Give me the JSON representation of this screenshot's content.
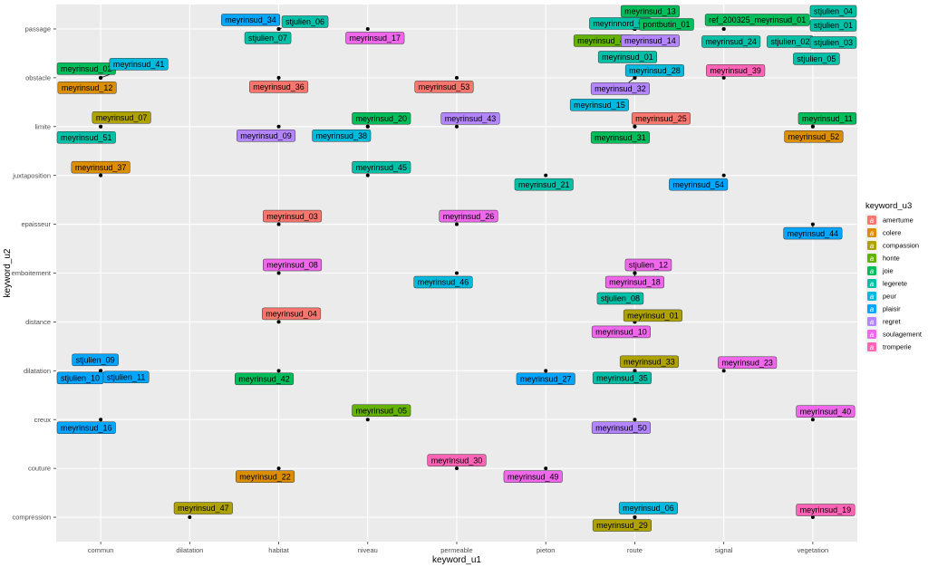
{
  "chart_data": {
    "type": "scatter",
    "xlabel": "keyword_u1",
    "ylabel": "keyword_u2",
    "x_categories": [
      "commun",
      "dilatation",
      "habitat",
      "niveau",
      "permeable",
      "pieton",
      "route",
      "signal",
      "vegetation"
    ],
    "y_categories": [
      "compression",
      "couture",
      "creux",
      "dilatation",
      "distance",
      "emboitement",
      "epaisseur",
      "juxtaposition",
      "limite",
      "obstacle",
      "passage"
    ],
    "legend": {
      "title": "keyword_u3",
      "key_glyph": "a",
      "position": "right",
      "entries": [
        {
          "name": "amertume",
          "color": "#F8766D"
        },
        {
          "name": "colere",
          "color": "#DB8E00"
        },
        {
          "name": "compassion",
          "color": "#AEA200"
        },
        {
          "name": "honte",
          "color": "#64B200"
        },
        {
          "name": "joie",
          "color": "#00BD5C"
        },
        {
          "name": "legerete",
          "color": "#00C1A7"
        },
        {
          "name": "peur",
          "color": "#00BADE"
        },
        {
          "name": "plaisir",
          "color": "#00A6FF"
        },
        {
          "name": "regret",
          "color": "#B385FF"
        },
        {
          "name": "soulagement",
          "color": "#EF67EB"
        },
        {
          "name": "tromperie",
          "color": "#FF63B6"
        }
      ]
    },
    "grid": true,
    "points": [
      {
        "label": "meyrinsud_34",
        "x": "habitat",
        "y": "passage",
        "group": "plaisir"
      },
      {
        "label": "stjulien_06",
        "x": "habitat",
        "y": "passage",
        "group": "legerete"
      },
      {
        "label": "stjulien_07",
        "x": "habitat",
        "y": "passage",
        "group": "legerete"
      },
      {
        "label": "meyrinsud_17",
        "x": "niveau",
        "y": "passage",
        "group": "soulagement"
      },
      {
        "label": "meyrinsud_13",
        "x": "route",
        "y": "passage",
        "group": "joie"
      },
      {
        "label": "meyrinnord_01",
        "x": "route",
        "y": "passage",
        "group": "legerete"
      },
      {
        "label": "pontbutin_01",
        "x": "route",
        "y": "passage",
        "group": "joie"
      },
      {
        "label": "meyrinsud_48",
        "x": "route",
        "y": "passage",
        "group": "honte"
      },
      {
        "label": "meyrinsud_14",
        "x": "route",
        "y": "passage",
        "group": "regret"
      },
      {
        "label": "meyrinsud_01",
        "x": "route",
        "y": "passage",
        "group": "legerete"
      },
      {
        "label": "ref_200325_meyrinsud_01",
        "x": "signal",
        "y": "passage",
        "group": "joie"
      },
      {
        "label": "meyrinsud_24",
        "x": "signal",
        "y": "passage",
        "group": "legerete"
      },
      {
        "label": "stjulien_04",
        "x": "vegetation",
        "y": "passage",
        "group": "legerete"
      },
      {
        "label": "stjulien_01",
        "x": "vegetation",
        "y": "passage",
        "group": "legerete"
      },
      {
        "label": "stjulien_02",
        "x": "vegetation",
        "y": "passage",
        "group": "legerete"
      },
      {
        "label": "stjulien_03",
        "x": "vegetation",
        "y": "passage",
        "group": "legerete"
      },
      {
        "label": "stjulien_05",
        "x": "vegetation",
        "y": "passage",
        "group": "legerete"
      },
      {
        "label": "meyrinsud_02",
        "x": "commun",
        "y": "obstacle",
        "group": "joie"
      },
      {
        "label": "meyrinsud_41",
        "x": "commun",
        "y": "obstacle",
        "group": "peur"
      },
      {
        "label": "meyrinsud_12",
        "x": "commun",
        "y": "obstacle",
        "group": "colere"
      },
      {
        "label": "meyrinsud_36",
        "x": "habitat",
        "y": "obstacle",
        "group": "amertume"
      },
      {
        "label": "meyrinsud_53",
        "x": "permeable",
        "y": "obstacle",
        "group": "amertume"
      },
      {
        "label": "meyrinsud_28",
        "x": "route",
        "y": "obstacle",
        "group": "peur"
      },
      {
        "label": "meyrinsud_32",
        "x": "route",
        "y": "obstacle",
        "group": "regret"
      },
      {
        "label": "meyrinsud_15",
        "x": "route",
        "y": "obstacle",
        "group": "peur"
      },
      {
        "label": "meyrinsud_39",
        "x": "signal",
        "y": "obstacle",
        "group": "tromperie"
      },
      {
        "label": "meyrinsud_07",
        "x": "commun",
        "y": "limite",
        "group": "compassion"
      },
      {
        "label": "meyrinsud_51",
        "x": "commun",
        "y": "limite",
        "group": "legerete"
      },
      {
        "label": "meyrinsud_09",
        "x": "habitat",
        "y": "limite",
        "group": "regret"
      },
      {
        "label": "meyrinsud_20",
        "x": "niveau",
        "y": "limite",
        "group": "joie"
      },
      {
        "label": "meyrinsud_38",
        "x": "niveau",
        "y": "limite",
        "group": "peur"
      },
      {
        "label": "meyrinsud_43",
        "x": "permeable",
        "y": "limite",
        "group": "regret"
      },
      {
        "label": "meyrinsud_25",
        "x": "route",
        "y": "limite",
        "group": "amertume"
      },
      {
        "label": "meyrinsud_31",
        "x": "route",
        "y": "limite",
        "group": "joie"
      },
      {
        "label": "meyrinsud_11",
        "x": "vegetation",
        "y": "limite",
        "group": "joie"
      },
      {
        "label": "meyrinsud_52",
        "x": "vegetation",
        "y": "limite",
        "group": "colere"
      },
      {
        "label": "meyrinsud_37",
        "x": "commun",
        "y": "juxtaposition",
        "group": "colere"
      },
      {
        "label": "meyrinsud_45",
        "x": "niveau",
        "y": "juxtaposition",
        "group": "legerete"
      },
      {
        "label": "meyrinsud_21",
        "x": "pieton",
        "y": "juxtaposition",
        "group": "legerete"
      },
      {
        "label": "meyrinsud_54",
        "x": "signal",
        "y": "juxtaposition",
        "group": "plaisir"
      },
      {
        "label": "meyrinsud_03",
        "x": "habitat",
        "y": "epaisseur",
        "group": "amertume"
      },
      {
        "label": "meyrinsud_26",
        "x": "permeable",
        "y": "epaisseur",
        "group": "soulagement"
      },
      {
        "label": "meyrinsud_44",
        "x": "vegetation",
        "y": "epaisseur",
        "group": "plaisir"
      },
      {
        "label": "meyrinsud_08",
        "x": "habitat",
        "y": "emboitement",
        "group": "soulagement"
      },
      {
        "label": "meyrinsud_46",
        "x": "permeable",
        "y": "emboitement",
        "group": "peur"
      },
      {
        "label": "stjulien_12",
        "x": "route",
        "y": "emboitement",
        "group": "soulagement"
      },
      {
        "label": "meyrinsud_18",
        "x": "route",
        "y": "emboitement",
        "group": "soulagement"
      },
      {
        "label": "stjulien_08",
        "x": "route",
        "y": "emboitement",
        "group": "legerete"
      },
      {
        "label": "meyrinsud_04",
        "x": "habitat",
        "y": "distance",
        "group": "amertume"
      },
      {
        "label": "meyrinsud_01",
        "x": "route",
        "y": "distance",
        "group": "compassion"
      },
      {
        "label": "meyrinsud_10",
        "x": "route",
        "y": "distance",
        "group": "soulagement"
      },
      {
        "label": "stjulien_09",
        "x": "commun",
        "y": "dilatation",
        "group": "plaisir"
      },
      {
        "label": "stjulien_10",
        "x": "commun",
        "y": "dilatation",
        "group": "plaisir"
      },
      {
        "label": "stjulien_11",
        "x": "commun",
        "y": "dilatation",
        "group": "plaisir"
      },
      {
        "label": "meyrinsud_42",
        "x": "habitat",
        "y": "dilatation",
        "group": "joie"
      },
      {
        "label": "meyrinsud_27",
        "x": "pieton",
        "y": "dilatation",
        "group": "plaisir"
      },
      {
        "label": "meyrinsud_33",
        "x": "route",
        "y": "dilatation",
        "group": "compassion"
      },
      {
        "label": "meyrinsud_35",
        "x": "route",
        "y": "dilatation",
        "group": "legerete"
      },
      {
        "label": "meyrinsud_23",
        "x": "signal",
        "y": "dilatation",
        "group": "soulagement"
      },
      {
        "label": "meyrinsud_16",
        "x": "commun",
        "y": "creux",
        "group": "plaisir"
      },
      {
        "label": "meyrinsud_05",
        "x": "niveau",
        "y": "creux",
        "group": "honte"
      },
      {
        "label": "meyrinsud_50",
        "x": "route",
        "y": "creux",
        "group": "regret"
      },
      {
        "label": "meyrinsud_40",
        "x": "vegetation",
        "y": "creux",
        "group": "soulagement"
      },
      {
        "label": "meyrinsud_22",
        "x": "habitat",
        "y": "couture",
        "group": "colere"
      },
      {
        "label": "meyrinsud_30",
        "x": "permeable",
        "y": "couture",
        "group": "tromperie"
      },
      {
        "label": "meyrinsud_49",
        "x": "pieton",
        "y": "couture",
        "group": "soulagement"
      },
      {
        "label": "meyrinsud_47",
        "x": "dilatation",
        "y": "compression",
        "group": "compassion"
      },
      {
        "label": "meyrinsud_06",
        "x": "route",
        "y": "compression",
        "group": "peur"
      },
      {
        "label": "meyrinsud_29",
        "x": "route",
        "y": "compression",
        "group": "compassion"
      },
      {
        "label": "meyrinsud_19",
        "x": "vegetation",
        "y": "compression",
        "group": "tromperie"
      }
    ]
  }
}
